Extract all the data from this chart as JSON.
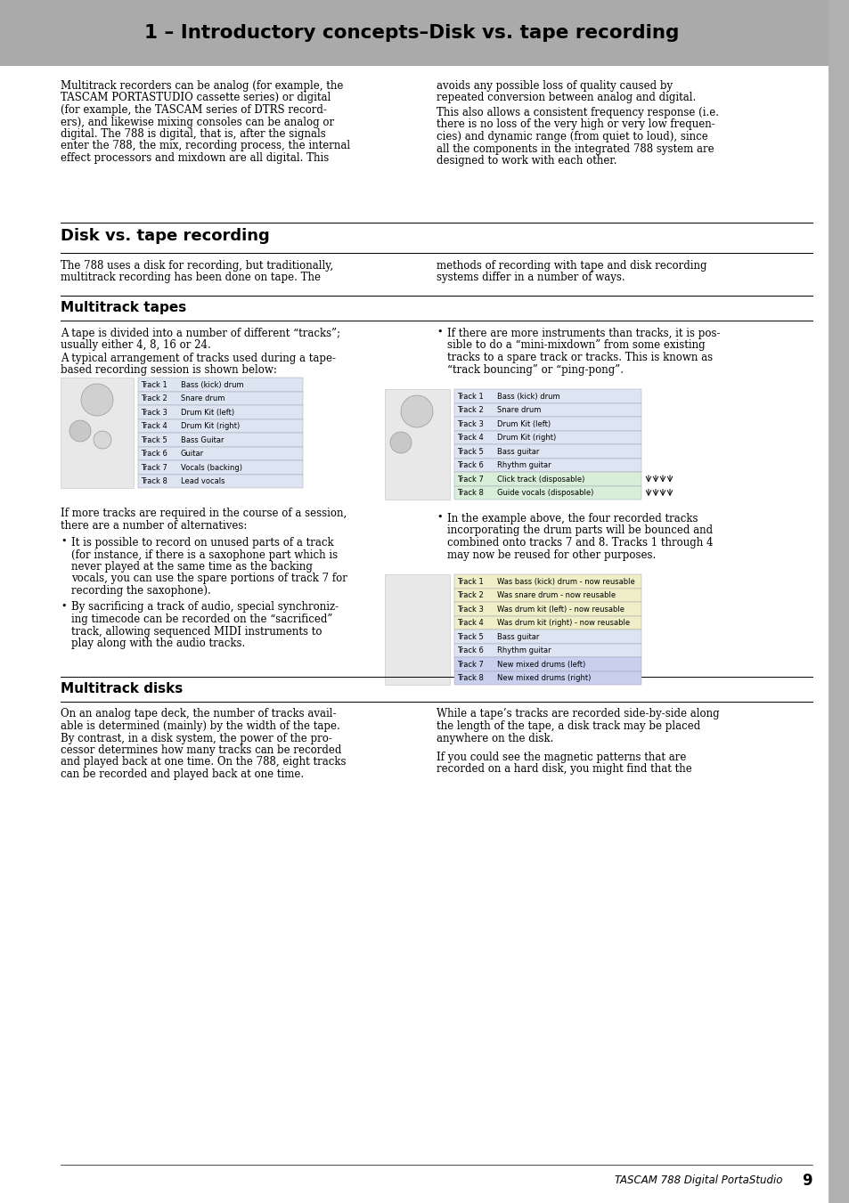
{
  "title": "1 – Introductory concepts–Disk vs. tape recording",
  "title_bg": "#999999",
  "footer_text": "TASCAM 788 Digital PortaStudio",
  "footer_page": "9",
  "body_bg": "#ffffff",
  "sidebar_color": "#aaaaaa",
  "section1_title": "Disk vs. tape recording",
  "section2_title": "Multitrack tapes",
  "section3_title": "Multitrack disks",
  "intro_left_lines": [
    "Multitrack recorders can be analog (for example, the",
    "TASCAM PORTASTUDIO cassette series) or digital",
    "(for example, the TASCAM series of DTRS record-",
    "ers), and likewise mixing consoles can be analog or",
    "digital. The 788 is digital, that is, after the signals",
    "enter the 788, the mix, recording process, the internal",
    "effect processors and mixdown are all digital. This"
  ],
  "intro_right_p1_lines": [
    "avoids any possible loss of quality caused by",
    "repeated conversion between analog and digital."
  ],
  "intro_right_p2_lines": [
    "This also allows a consistent frequency response (i.e.",
    "there is no loss of the very high or very low frequen-",
    "cies) and dynamic range (from quiet to loud), since",
    "all the components in the integrated 788 system are",
    "designed to work with each other."
  ],
  "disk_tape_left_lines": [
    "The 788 uses a disk for recording, but traditionally,",
    "multitrack recording has been done on tape. The"
  ],
  "disk_tape_right_lines": [
    "methods of recording with tape and disk recording",
    "systems differ in a number of ways."
  ],
  "mt_tapes_p1_lines": [
    "A tape is divided into a number of different “tracks”;",
    "usually either 4, 8, 16 or 24."
  ],
  "mt_tapes_p2_lines": [
    "A typical arrangement of tracks used during a tape-",
    "based recording session is shown below:"
  ],
  "mt_tapes_bullet1_lines": [
    "It is possible to record on unused parts of a track",
    "(for instance, if there is a saxophone part which is",
    "never played at the same time as the backing",
    "vocals, you can use the spare portions of track 7 for",
    "recording the saxophone)."
  ],
  "mt_tapes_bullet2_lines": [
    "By sacrificing a track of audio, special synchroniz-",
    "ing timecode can be recorded on the “sacrificed”",
    "track, allowing sequenced MIDI instruments to",
    "play along with the audio tracks."
  ],
  "mt_tapes_right_bullet1_lines": [
    "If there are more instruments than tracks, it is pos-",
    "sible to do a “mini-mixdown” from some existing",
    "tracks to a spare track or tracks. This is known as",
    "“track bouncing” or “ping-pong”."
  ],
  "mt_tapes_right_p2_lines": [
    "In the example above, the four recorded tracks",
    "incorporating the drum parts will be bounced and",
    "combined onto tracks 7 and 8. Tracks 1 through 4",
    "may now be reused for other purposes."
  ],
  "tracks_left": [
    "Bass (kick) drum",
    "Snare drum",
    "Drum Kit (left)",
    "Drum Kit (right)",
    "Bass Guitar",
    "Guitar",
    "Vocals (backing)",
    "Lead vocals"
  ],
  "tracks_right1": [
    "Bass (kick) drum",
    "Snare drum",
    "Drum Kit (left)",
    "Drum Kit (right)",
    "Bass guitar",
    "Rhythm guitar",
    "Click track (disposable)",
    "Guide vocals (disposable)"
  ],
  "tracks_right2": [
    "Was bass (kick) drum - now reusable",
    "Was snare drum - now reusable",
    "Was drum kit (left) - now reusable",
    "Was drum kit (right) - now reusable",
    "Bass guitar",
    "Rhythm guitar",
    "New mixed drums (left)",
    "New mixed drums (right)"
  ],
  "multitrack_disks_left_lines": [
    "On an analog tape deck, the number of tracks avail-",
    "able is determined (mainly) by the width of the tape.",
    "By contrast, in a disk system, the power of the pro-",
    "cessor determines how many tracks can be recorded",
    "and played back at one time. On the 788, eight tracks",
    "can be recorded and played back at one time."
  ],
  "multitrack_disks_right_p1_lines": [
    "While a tape’s tracks are recorded side-by-side along",
    "the length of the tape, a disk track may be placed",
    "anywhere on the disk."
  ],
  "multitrack_disks_right_p2_lines": [
    "If you could see the magnetic patterns that are",
    "recorded on a hard disk, you might find that the"
  ],
  "if_more_tracks_lines": [
    "If more tracks are required in the course of a session,",
    "there are a number of alternatives:"
  ]
}
